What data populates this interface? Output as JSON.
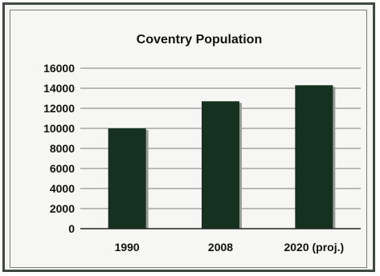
{
  "chart_data": {
    "type": "bar",
    "title": "Coventry Population",
    "xlabel": "",
    "ylabel": "",
    "categories": [
      "1990",
      "2008",
      "2020 (proj.)"
    ],
    "values": [
      10000,
      12700,
      14300
    ],
    "ylim": [
      0,
      16000
    ],
    "yticks": [
      "0",
      "2000",
      "4000",
      "6000",
      "8000",
      "10000",
      "12000",
      "14000",
      "16000"
    ],
    "grid": true,
    "legend": "none",
    "bar_color": "#14321f",
    "grid_color": "#7c7c7c"
  }
}
